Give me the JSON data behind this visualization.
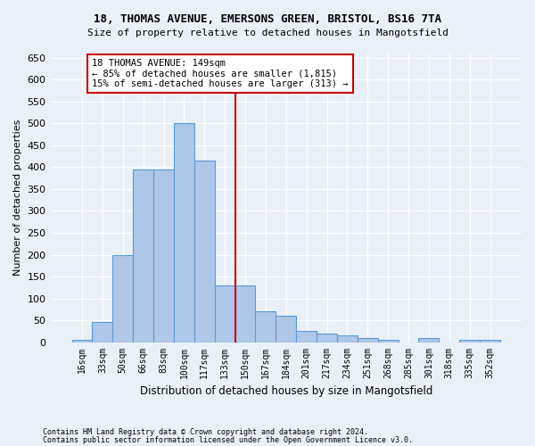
{
  "title1": "18, THOMAS AVENUE, EMERSONS GREEN, BRISTOL, BS16 7TA",
  "title2": "Size of property relative to detached houses in Mangotsfield",
  "xlabel": "Distribution of detached houses by size in Mangotsfield",
  "ylabel": "Number of detached properties",
  "footer1": "Contains HM Land Registry data © Crown copyright and database right 2024.",
  "footer2": "Contains public sector information licensed under the Open Government Licence v3.0.",
  "categories": [
    "16sqm",
    "33sqm",
    "50sqm",
    "66sqm",
    "83sqm",
    "100sqm",
    "117sqm",
    "133sqm",
    "150sqm",
    "167sqm",
    "184sqm",
    "201sqm",
    "217sqm",
    "234sqm",
    "251sqm",
    "268sqm",
    "285sqm",
    "301sqm",
    "318sqm",
    "335sqm",
    "352sqm"
  ],
  "values": [
    5,
    45,
    200,
    395,
    395,
    500,
    415,
    130,
    130,
    70,
    60,
    25,
    20,
    15,
    10,
    5,
    0,
    10,
    0,
    5,
    5
  ],
  "bar_color": "#aec6e8",
  "bar_edge_color": "#5b9bd5",
  "annotation_line1": "18 THOMAS AVENUE: 149sqm",
  "annotation_line2": "← 85% of detached houses are smaller (1,815)",
  "annotation_line3": "15% of semi-detached houses are larger (313) →",
  "annotation_box_color": "#ffffff",
  "annotation_box_edge": "#cc0000",
  "vline_color": "#cc0000",
  "ylim": [
    0,
    660
  ],
  "yticks": [
    0,
    50,
    100,
    150,
    200,
    250,
    300,
    350,
    400,
    450,
    500,
    550,
    600,
    650
  ],
  "bg_color": "#eaf0f8",
  "grid_color": "#ffffff"
}
